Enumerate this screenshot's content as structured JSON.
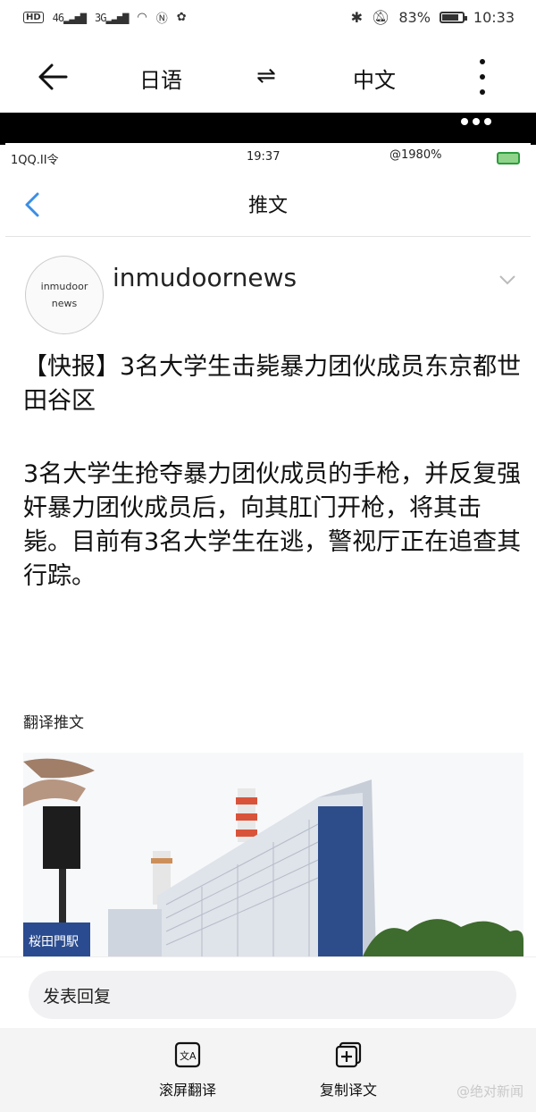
{
  "status_bar": {
    "hd": "HD",
    "net1": "46",
    "net2": "3G",
    "battery_percent": "83%",
    "time": "10:33"
  },
  "toolbar": {
    "source_lang": "日语",
    "swap_symbol": "⇌",
    "target_lang": "中文"
  },
  "inner_screenshot": {
    "status": {
      "carrier": "1QQ.II令",
      "time": "19:37",
      "right": "@1980%"
    },
    "title": "推文",
    "author": {
      "avatar_line1": "inmudoor",
      "avatar_line2": "news",
      "username": "inmudoornews"
    },
    "headline": "【快报】3名大学生击毙暴力团伙成员东京都世田谷区",
    "body": "3名大学生抢夺暴力团伙成员的手枪，并反复强奸暴力团伙成员后，向其肛门开枪，将其击毙。目前有3名大学生在逃，警视厅正在追查其行踪。",
    "translate_label": "翻译推文",
    "photo_sign": "桜田門駅"
  },
  "reply": {
    "placeholder": "发表回复"
  },
  "bottom_bar": {
    "scroll_translate": "滚屏翻译",
    "copy_translation": "复制译文",
    "watermark": "@绝对新闻"
  },
  "colors": {
    "accent_blue": "#3b8ee6",
    "black_strip": "#000000"
  }
}
